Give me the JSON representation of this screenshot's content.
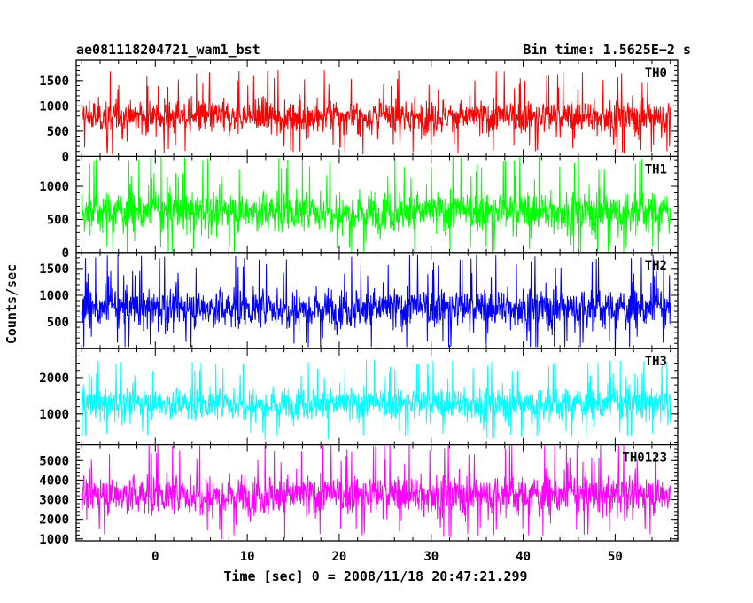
{
  "chart_data": {
    "type": "line",
    "title_left": "ae081118204721_wam1_bst",
    "title_right": "Bin time: 1.5625E−2 s",
    "xlabel": "Time [sec] 0 = 2008/11/18 20:47:21.299",
    "ylabel": "Counts/sec",
    "xlim": [
      -8.6,
      56.8
    ],
    "x_ticks": [
      0,
      10,
      20,
      30,
      40,
      50
    ],
    "x_range_data": [
      -8,
      56
    ],
    "bin_time_s": 0.015625,
    "grid": false,
    "panels": [
      {
        "name": "TH0",
        "color": "#ff0000",
        "ylim": [
          0,
          1900
        ],
        "y_ticks": [
          0,
          500,
          1000,
          1500
        ],
        "mean": 780,
        "sd": 270,
        "min": 0,
        "max": 1900
      },
      {
        "name": "TH1",
        "color": "#00ff00",
        "ylim": [
          0,
          1450
        ],
        "y_ticks": [
          0,
          500,
          1000
        ],
        "mean": 620,
        "sd": 250,
        "min": 0,
        "max": 1450
      },
      {
        "name": "TH2",
        "color": "#0000ff",
        "ylim": [
          0,
          1800
        ],
        "y_ticks": [
          500,
          1000,
          1500
        ],
        "mean": 760,
        "sd": 300,
        "min": 30,
        "max": 1800
      },
      {
        "name": "TH3",
        "color": "#00ffff",
        "ylim": [
          150,
          2800
        ],
        "y_ticks": [
          1000,
          2000
        ],
        "mean": 1280,
        "sd": 360,
        "min": 150,
        "max": 2800
      },
      {
        "name": "TH0123",
        "color": "#ff00ff",
        "ylim": [
          900,
          5800
        ],
        "y_ticks": [
          1000,
          2000,
          3000,
          4000,
          5000
        ],
        "mean": 3250,
        "sd": 820,
        "min": 900,
        "max": 5800
      }
    ]
  }
}
